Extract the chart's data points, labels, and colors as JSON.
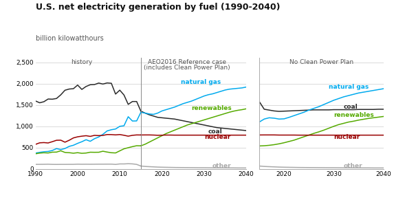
{
  "title": "U.S. net electricity generation by fuel (1990-2040)",
  "ylabel": "billion kilowatthours",
  "ylim": [
    0,
    2600
  ],
  "yticks": [
    0,
    500,
    1000,
    1500,
    2000,
    2500
  ],
  "ytick_labels": [
    "0",
    "500",
    "1,000",
    "1,500",
    "2,000",
    "2,500"
  ],
  "colors": {
    "coal": "#2b2b2b",
    "natural_gas": "#00aaee",
    "renewables": "#55aa00",
    "nuclear": "#990000",
    "other": "#aaaaaa"
  },
  "history_years": [
    1990,
    1991,
    1992,
    1993,
    1994,
    1995,
    1996,
    1997,
    1998,
    1999,
    2000,
    2001,
    2002,
    2003,
    2004,
    2005,
    2006,
    2007,
    2008,
    2009,
    2010,
    2011,
    2012,
    2013,
    2014,
    2015
  ],
  "history_coal": [
    1594,
    1551,
    1576,
    1639,
    1635,
    1652,
    1737,
    1845,
    1873,
    1881,
    1966,
    1864,
    1933,
    1974,
    1978,
    2013,
    1990,
    2016,
    2008,
    1755,
    1847,
    1733,
    1514,
    1581,
    1581,
    1355
  ],
  "history_natgas": [
    373,
    390,
    404,
    411,
    434,
    478,
    455,
    480,
    530,
    556,
    601,
    639,
    686,
    649,
    710,
    750,
    813,
    892,
    920,
    937,
    1000,
    1013,
    1225,
    1124,
    1126,
    1328
  ],
  "history_renewables": [
    356,
    372,
    380,
    375,
    394,
    396,
    427,
    388,
    382,
    370,
    382,
    368,
    374,
    393,
    391,
    392,
    416,
    397,
    381,
    376,
    425,
    473,
    499,
    524,
    545,
    543
  ],
  "history_nuclear": [
    577,
    613,
    619,
    610,
    640,
    673,
    675,
    628,
    673,
    728,
    754,
    769,
    780,
    764,
    788,
    782,
    787,
    807,
    806,
    799,
    807,
    790,
    769,
    789,
    798,
    797
  ],
  "history_other": [
    108,
    109,
    110,
    112,
    108,
    107,
    108,
    108,
    109,
    109,
    113,
    111,
    112,
    111,
    112,
    113,
    113,
    114,
    114,
    107,
    119,
    119,
    124,
    120,
    108,
    70
  ],
  "ref_years": [
    2015,
    2016,
    2017,
    2018,
    2019,
    2020,
    2021,
    2022,
    2023,
    2024,
    2025,
    2026,
    2027,
    2028,
    2029,
    2030,
    2031,
    2032,
    2033,
    2034,
    2035,
    2036,
    2037,
    2038,
    2039,
    2040
  ],
  "ref_coal": [
    1355,
    1310,
    1270,
    1240,
    1210,
    1200,
    1190,
    1180,
    1170,
    1150,
    1130,
    1110,
    1090,
    1070,
    1050,
    1030,
    1010,
    990,
    970,
    960,
    950,
    940,
    930,
    920,
    910,
    900
  ],
  "ref_natgas": [
    1328,
    1310,
    1290,
    1280,
    1310,
    1360,
    1390,
    1420,
    1450,
    1490,
    1530,
    1560,
    1590,
    1630,
    1670,
    1710,
    1740,
    1760,
    1790,
    1820,
    1850,
    1870,
    1880,
    1890,
    1900,
    1920
  ],
  "ref_renewables": [
    543,
    580,
    630,
    680,
    730,
    780,
    830,
    870,
    910,
    950,
    990,
    1030,
    1060,
    1090,
    1120,
    1150,
    1180,
    1210,
    1240,
    1270,
    1300,
    1330,
    1355,
    1375,
    1390,
    1410
  ],
  "ref_nuclear": [
    797,
    798,
    798,
    795,
    790,
    792,
    795,
    795,
    793,
    793,
    793,
    793,
    793,
    793,
    793,
    793,
    793,
    793,
    793,
    793,
    793,
    793,
    793,
    793,
    793,
    793
  ],
  "ref_other": [
    70,
    60,
    55,
    50,
    45,
    42,
    40,
    38,
    36,
    35,
    34,
    33,
    32,
    31,
    30,
    30,
    29,
    28,
    28,
    27,
    27,
    26,
    26,
    25,
    25,
    25
  ],
  "nocpp_years": [
    2015,
    2016,
    2017,
    2018,
    2019,
    2020,
    2021,
    2022,
    2023,
    2024,
    2025,
    2026,
    2027,
    2028,
    2029,
    2030,
    2031,
    2032,
    2033,
    2034,
    2035,
    2036,
    2037,
    2038,
    2039,
    2040
  ],
  "nocpp_coal": [
    1580,
    1400,
    1380,
    1360,
    1350,
    1355,
    1360,
    1365,
    1370,
    1375,
    1380,
    1385,
    1385,
    1385,
    1385,
    1390,
    1390,
    1390,
    1390,
    1390,
    1395,
    1395,
    1395,
    1395,
    1400,
    1400
  ],
  "nocpp_natgas": [
    1100,
    1170,
    1200,
    1190,
    1170,
    1175,
    1210,
    1250,
    1290,
    1330,
    1380,
    1420,
    1460,
    1510,
    1560,
    1610,
    1650,
    1690,
    1720,
    1750,
    1780,
    1800,
    1820,
    1840,
    1860,
    1880
  ],
  "nocpp_renewables": [
    540,
    545,
    555,
    570,
    590,
    615,
    645,
    675,
    715,
    755,
    795,
    835,
    870,
    910,
    955,
    1000,
    1040,
    1070,
    1100,
    1120,
    1145,
    1165,
    1185,
    1200,
    1215,
    1230
  ],
  "nocpp_nuclear": [
    797,
    798,
    798,
    798,
    795,
    795,
    795,
    795,
    793,
    793,
    793,
    793,
    793,
    793,
    793,
    793,
    793,
    793,
    793,
    793,
    793,
    793,
    793,
    793,
    793,
    793
  ],
  "nocpp_other": [
    70,
    60,
    55,
    50,
    45,
    42,
    40,
    38,
    36,
    35,
    34,
    33,
    32,
    31,
    30,
    30,
    29,
    28,
    28,
    27,
    27,
    26,
    26,
    25,
    25,
    25
  ],
  "background_color": "#ffffff",
  "grid_color": "#cccccc",
  "title_fontsize": 9,
  "label_fontsize": 7,
  "tick_fontsize": 6.5,
  "annot_fontsize": 6.5
}
